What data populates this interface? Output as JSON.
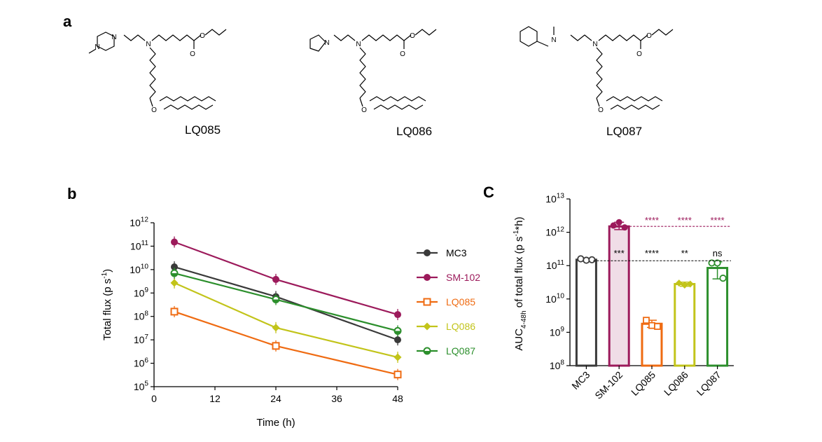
{
  "panels": {
    "a": "a",
    "b": "b",
    "c": "C"
  },
  "molecules": [
    {
      "name": "LQ085"
    },
    {
      "name": "LQ086"
    },
    {
      "name": "LQ087"
    }
  ],
  "atom_labels": {
    "n": "N",
    "o": "O"
  },
  "chart_data": [
    {
      "type": "line",
      "panel": "b",
      "xlabel": "Time (h)",
      "ylabel": "Total flux (p s",
      "ylabel_sup": "-1",
      "ylabel_end": ")",
      "xscale": "linear",
      "yscale": "log",
      "xlim": [
        0,
        48
      ],
      "ylim": [
        100000,
        1000000000000
      ],
      "xticks": [
        "0",
        "12",
        "24",
        "36",
        "48"
      ],
      "yticks": [
        {
          "base": "10",
          "exp": "5"
        },
        {
          "base": "10",
          "exp": "6"
        },
        {
          "base": "10",
          "exp": "7"
        },
        {
          "base": "10",
          "exp": "8"
        },
        {
          "base": "10",
          "exp": "9"
        },
        {
          "base": "10",
          "exp": "10"
        },
        {
          "base": "10",
          "exp": "11"
        },
        {
          "base": "10",
          "exp": "12"
        }
      ],
      "grid": false,
      "legend_position": "right",
      "x": [
        4,
        24,
        48
      ],
      "series": [
        {
          "name": "MC3",
          "color": "#3a3a3a",
          "marker": "circle-filled",
          "values": [
            13000000000,
            700000000,
            10000000
          ]
        },
        {
          "name": "SM-102",
          "color": "#9c1a5b",
          "marker": "circle-filled",
          "values": [
            150000000000,
            3800000000,
            120000000
          ]
        },
        {
          "name": "LQ085",
          "color": "#ef6b12",
          "marker": "square-open",
          "values": [
            160000000,
            5500000,
            330000
          ]
        },
        {
          "name": "LQ086",
          "color": "#c2c41a",
          "marker": "diamond-filled",
          "values": [
            2700000000,
            33000000,
            1800000
          ]
        },
        {
          "name": "LQ087",
          "color": "#2c8f2c",
          "marker": "circle-half",
          "values": [
            7000000000,
            530000000,
            24000000
          ]
        }
      ]
    },
    {
      "type": "bar",
      "panel": "C",
      "ylabel_base": "AUC",
      "ylabel_sub": "4-48h",
      "ylabel_mid": " of total flux (p s",
      "ylabel_sup": "-1",
      "ylabel_end": "*h)",
      "yscale": "log",
      "ylim": [
        100000000,
        10000000000000
      ],
      "yticks": [
        {
          "base": "10",
          "exp": "8"
        },
        {
          "base": "10",
          "exp": "9"
        },
        {
          "base": "10",
          "exp": "10"
        },
        {
          "base": "10",
          "exp": "11"
        },
        {
          "base": "10",
          "exp": "12"
        },
        {
          "base": "10",
          "exp": "13"
        }
      ],
      "categories": [
        "MC3",
        "SM-102",
        "LQ085",
        "LQ086",
        "LQ087"
      ],
      "values": [
        150000000000,
        1500000000000,
        1800000000,
        28000000000,
        85000000000
      ],
      "colors": [
        "#3a3a3a",
        "#9c1a5b",
        "#ef6b12",
        "#c2c41a",
        "#2c8f2c"
      ],
      "points": [
        [
          160000000000,
          145000000000,
          150000000000
        ],
        [
          1600000000000,
          2000000000000,
          1400000000000
        ],
        [
          2300000000,
          1600000000,
          1500000000
        ],
        [
          30000000000,
          26000000000,
          28000000000
        ],
        [
          120000000000,
          120000000000,
          42000000000
        ]
      ],
      "error_high": [
        158000000000,
        2000000000000,
        2300000000,
        32000000000,
        130000000000
      ],
      "error_low": [
        142000000000,
        1200000000000,
        1400000000,
        24000000000,
        40000000000
      ],
      "significance": {
        "vs_SM102": {
          "value": 1500000000000,
          "color": "#9c1a5b",
          "labels": [
            "",
            "",
            "****",
            "****",
            "****"
          ]
        },
        "vs_MC3": {
          "value": 140000000000,
          "color": "#000000",
          "labels": [
            "",
            "***",
            "****",
            "**",
            "ns"
          ]
        }
      }
    }
  ]
}
